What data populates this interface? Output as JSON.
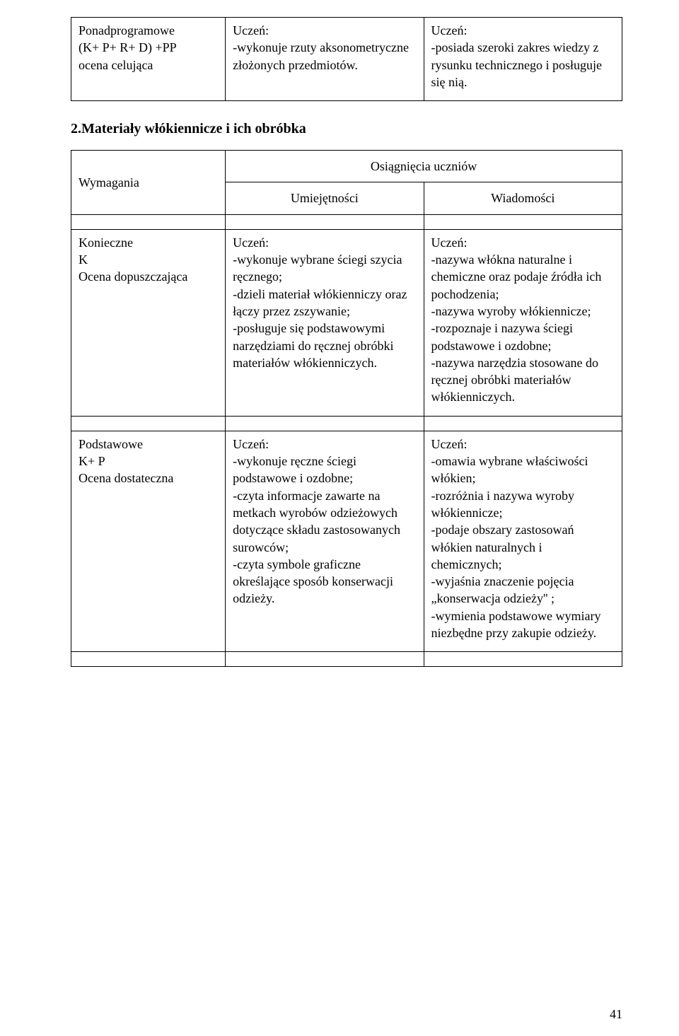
{
  "topTable": {
    "row": {
      "left": "Ponadprogramowe\n(K+ P+ R+ D) +PP\nocena celująca",
      "mid": "Uczeń:\n-wykonuje rzuty aksonometryczne  złożonych przedmiotów.",
      "right": "Uczeń:\n-posiada szeroki zakres wiedzy z rysunku technicznego i posługuje się nią."
    }
  },
  "sectionHeading": "2.Materiały włókiennicze i ich obróbka",
  "mainTable": {
    "header": {
      "left": "Wymagania",
      "osiagniecia": "Osiągnięcia uczniów",
      "umiejetnosci": "Umiejętności",
      "wiadomosci": "Wiadomości"
    },
    "rows": [
      {
        "left": "Konieczne\nK\nOcena dopuszczająca",
        "mid": "Uczeń:\n-wykonuje wybrane ściegi szycia ręcznego;\n-dzieli materiał włókienniczy oraz łączy przez zszywanie;\n-posługuje się podstawowymi narzędziami do ręcznej obróbki materiałów włókienniczych.",
        "right": "Uczeń:\n-nazywa włókna naturalne i chemiczne oraz podaje źródła ich pochodzenia;\n-nazywa wyroby włókiennicze;\n-rozpoznaje i nazywa ściegi podstawowe i ozdobne;\n-nazywa narzędzia stosowane do ręcznej obróbki materiałów włókienniczych."
      },
      {
        "left": "Podstawowe\nK+ P\nOcena dostateczna",
        "mid": "Uczeń:\n-wykonuje ręczne ściegi podstawowe i ozdobne;\n-czyta informacje zawarte na metkach wyrobów odzieżowych dotyczące składu zastosowanych surowców;\n-czyta symbole graficzne określające sposób konserwacji odzieży.",
        "right": "Uczeń:\n-omawia wybrane właściwości włókien;\n-rozróżnia i nazywa wyroby włókiennicze;\n-podaje obszary zastosowań włókien naturalnych i chemicznych;\n-wyjaśnia znaczenie pojęcia „konserwacja odzieży'' ;\n-wymienia podstawowe wymiary niezbędne przy zakupie odzieży."
      }
    ]
  },
  "pageNumber": "41"
}
